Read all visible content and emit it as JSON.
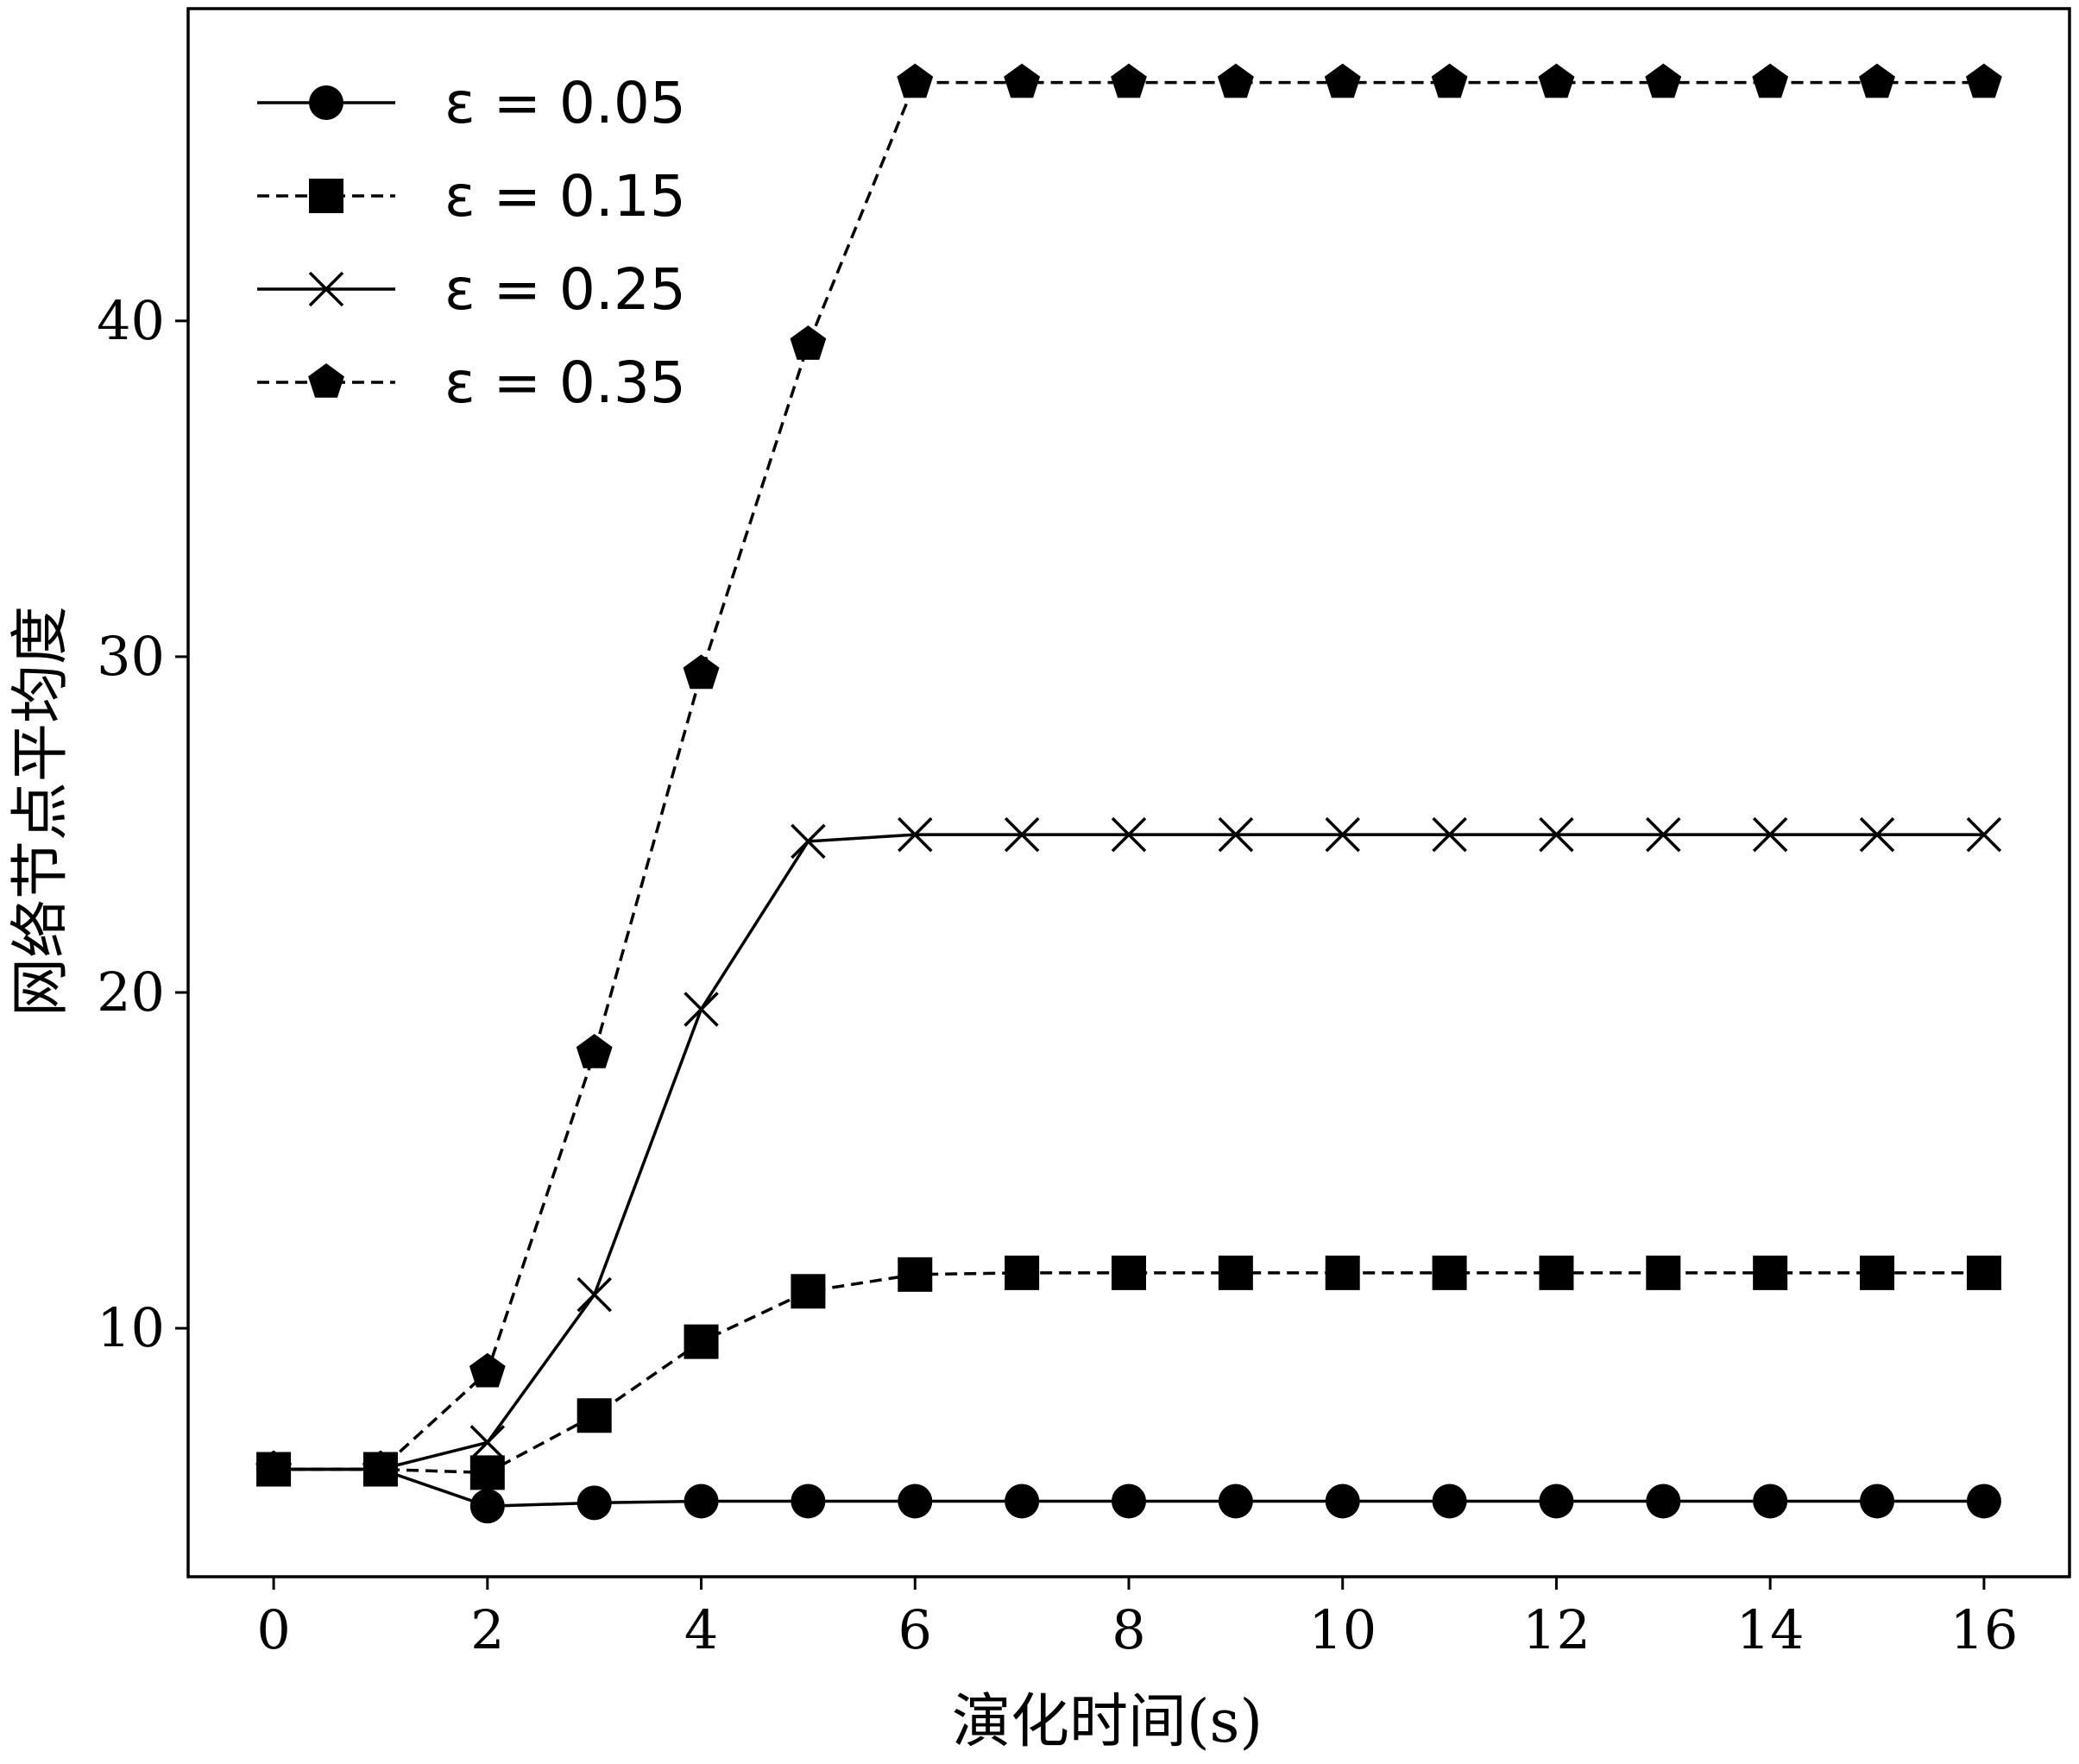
{
  "chart_data": {
    "type": "line",
    "title": "",
    "xlabel": "演化时间(s)",
    "ylabel": "网络节点平均度",
    "xlim": [
      -0.8,
      16.8
    ],
    "ylim": [
      2.6,
      49.3
    ],
    "x_ticks": [
      0,
      2,
      4,
      6,
      8,
      10,
      12,
      14,
      16
    ],
    "x_tick_labels": [
      "0",
      "2",
      "4",
      "6",
      "8",
      "10",
      "12",
      "14",
      "16"
    ],
    "y_ticks": [
      10,
      20,
      30,
      40
    ],
    "y_tick_labels": [
      "10",
      "20",
      "30",
      "40"
    ],
    "grid": false,
    "legend_position": "top-left",
    "x": [
      0,
      1,
      2,
      3,
      4,
      5,
      6,
      7,
      8,
      9,
      10,
      11,
      12,
      13,
      14,
      15,
      16
    ],
    "series": [
      {
        "name": "ε = 0.05",
        "marker": "circle",
        "line_style": "solid",
        "values": [
          5.8,
          5.8,
          4.7,
          4.8,
          4.85,
          4.85,
          4.85,
          4.85,
          4.85,
          4.85,
          4.85,
          4.85,
          4.85,
          4.85,
          4.85,
          4.85,
          4.85
        ]
      },
      {
        "name": "ε = 0.15",
        "marker": "square",
        "line_style": "dashed",
        "values": [
          5.8,
          5.8,
          5.7,
          7.4,
          9.6,
          11.1,
          11.6,
          11.65,
          11.65,
          11.65,
          11.65,
          11.65,
          11.65,
          11.65,
          11.65,
          11.65,
          11.65
        ]
      },
      {
        "name": "ε = 0.25",
        "marker": "x",
        "line_style": "solid",
        "values": [
          5.8,
          5.8,
          6.6,
          11.0,
          19.5,
          24.5,
          24.7,
          24.7,
          24.7,
          24.7,
          24.7,
          24.7,
          24.7,
          24.7,
          24.7,
          24.7,
          24.7
        ]
      },
      {
        "name": "ε = 0.35",
        "marker": "pentagon",
        "line_style": "dashed",
        "values": [
          5.8,
          5.8,
          8.7,
          18.2,
          29.5,
          39.3,
          47.1,
          47.1,
          47.1,
          47.1,
          47.1,
          47.1,
          47.1,
          47.1,
          47.1,
          47.1,
          47.1
        ]
      }
    ],
    "colors": {
      "line": "#000000",
      "marker": "#000000",
      "background": "#ffffff"
    }
  }
}
